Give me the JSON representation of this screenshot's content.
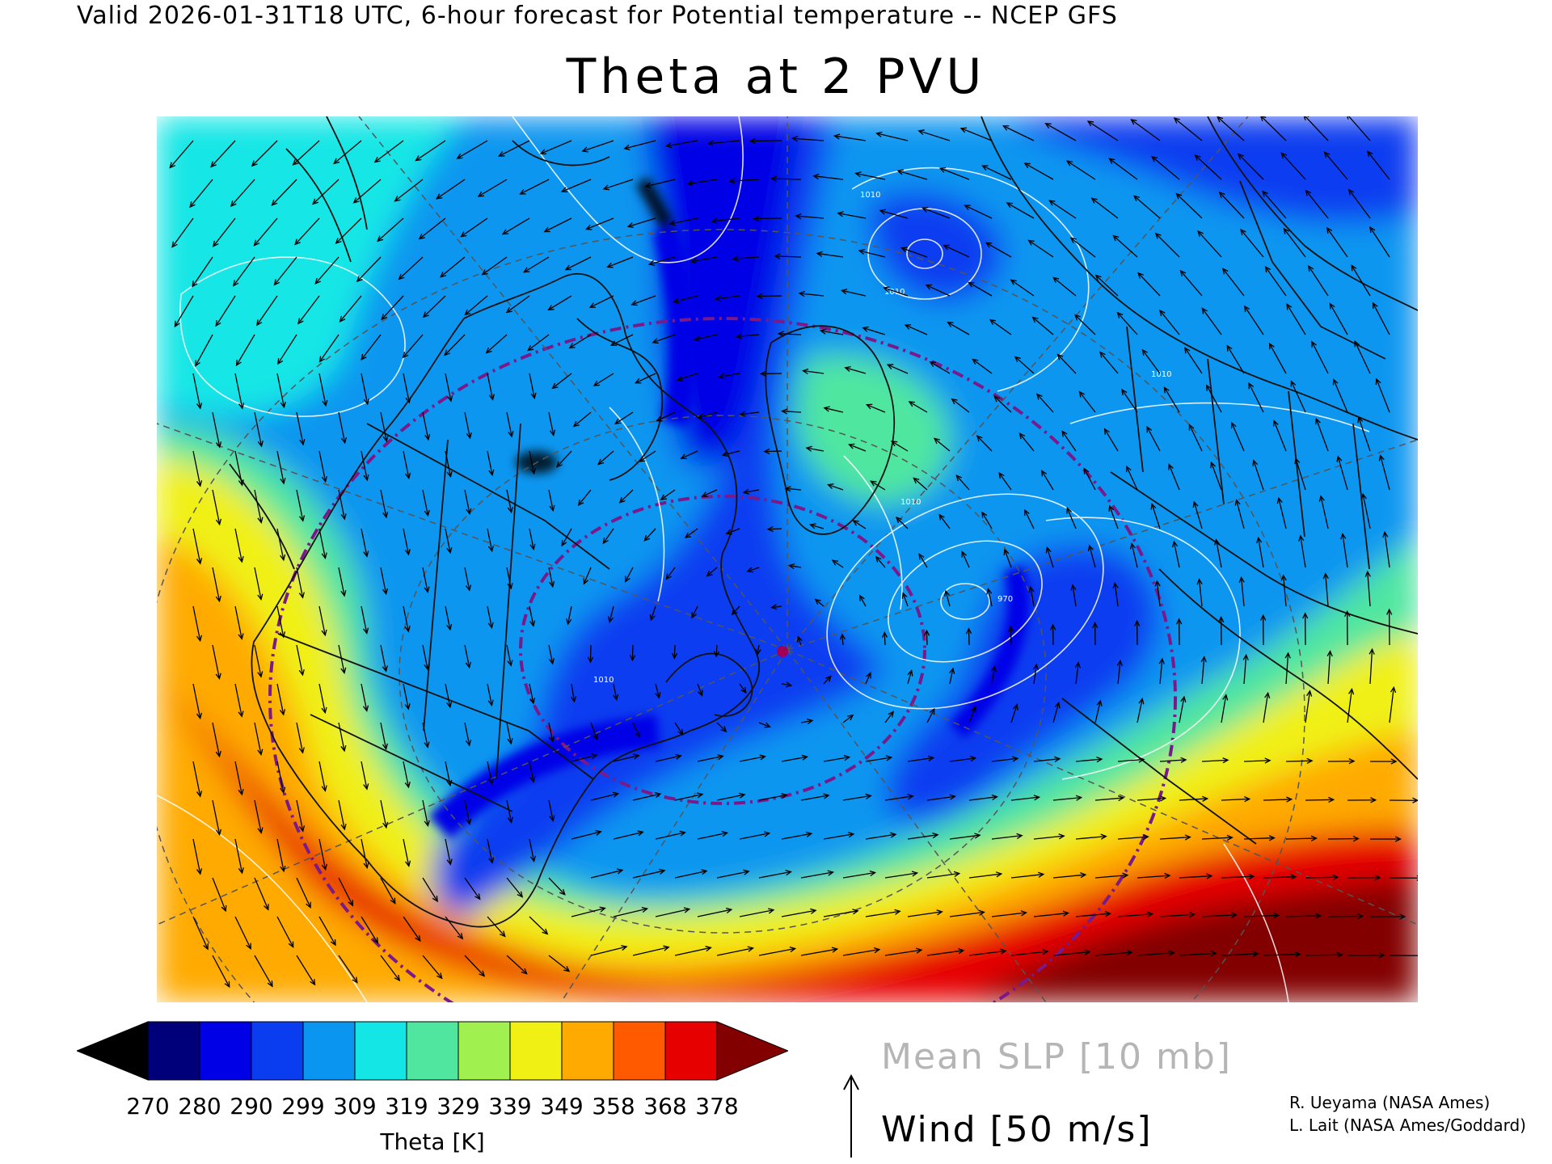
{
  "header": {
    "valid_line": "Valid 2026-01-31T18 UTC, 6-hour forecast for Potential temperature -- NCEP GFS",
    "title": "Theta at 2 PVU"
  },
  "colorbar": {
    "title": "Theta [K]",
    "ticks": [
      "270",
      "280",
      "290",
      "299",
      "309",
      "319",
      "329",
      "339",
      "349",
      "358",
      "368",
      "378"
    ],
    "colors": [
      "#000000",
      "#00007a",
      "#0000e6",
      "#0a3cf0",
      "#0a96f0",
      "#14e6e6",
      "#50e6a0",
      "#a0f050",
      "#f0f014",
      "#ffaa00",
      "#ff5a00",
      "#e60000",
      "#820000"
    ]
  },
  "legend": {
    "slp": "Mean SLP [10 mb]",
    "wind": "Wind [50 m/s]"
  },
  "credits": {
    "line1": "R. Ueyama (NASA Ames)",
    "line2": "L. Lait (NASA Ames/Goddard)"
  },
  "map": {
    "projection": "north polar stereographic",
    "contour_labels": [
      "1010",
      "1010",
      "1010",
      "1010",
      "970",
      "1010"
    ]
  }
}
